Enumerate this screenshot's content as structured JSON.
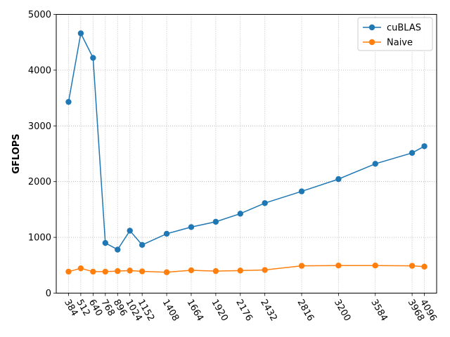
{
  "chart_data": {
    "type": "line",
    "title": "",
    "xlabel": "",
    "ylabel": "GFLOPS",
    "x": [
      384,
      512,
      640,
      768,
      896,
      1024,
      1152,
      1408,
      1664,
      1920,
      2176,
      2432,
      2816,
      3200,
      3584,
      3968,
      4096
    ],
    "x_tick_labels": [
      "384",
      "512",
      "640",
      "768",
      "896",
      "1024",
      "1152",
      "1408",
      "1664",
      "1920",
      "2176",
      "2432",
      "2816",
      "3200",
      "3584",
      "3968",
      "4096"
    ],
    "y_ticks": [
      0,
      1000,
      2000,
      3000,
      4000,
      5000
    ],
    "y_tick_labels": [
      "0",
      "1000",
      "2000",
      "3000",
      "4000",
      "5000"
    ],
    "xlim": [
      256,
      4224
    ],
    "ylim": [
      0,
      5000
    ],
    "grid": true,
    "grid_style": "dotted",
    "legend_position": "top-right",
    "series": [
      {
        "name": "cuBLAS",
        "color": "#1f77b4",
        "marker": "circle",
        "values": [
          3430,
          4660,
          4220,
          900,
          780,
          1120,
          865,
          1065,
          1185,
          1280,
          1425,
          1615,
          1825,
          2045,
          2320,
          2515,
          2635
        ]
      },
      {
        "name": "Naive",
        "color": "#ff7f0e",
        "marker": "circle",
        "values": [
          385,
          445,
          385,
          385,
          395,
          405,
          390,
          375,
          410,
          395,
          405,
          415,
          490,
          495,
          495,
          490,
          475
        ]
      }
    ]
  }
}
